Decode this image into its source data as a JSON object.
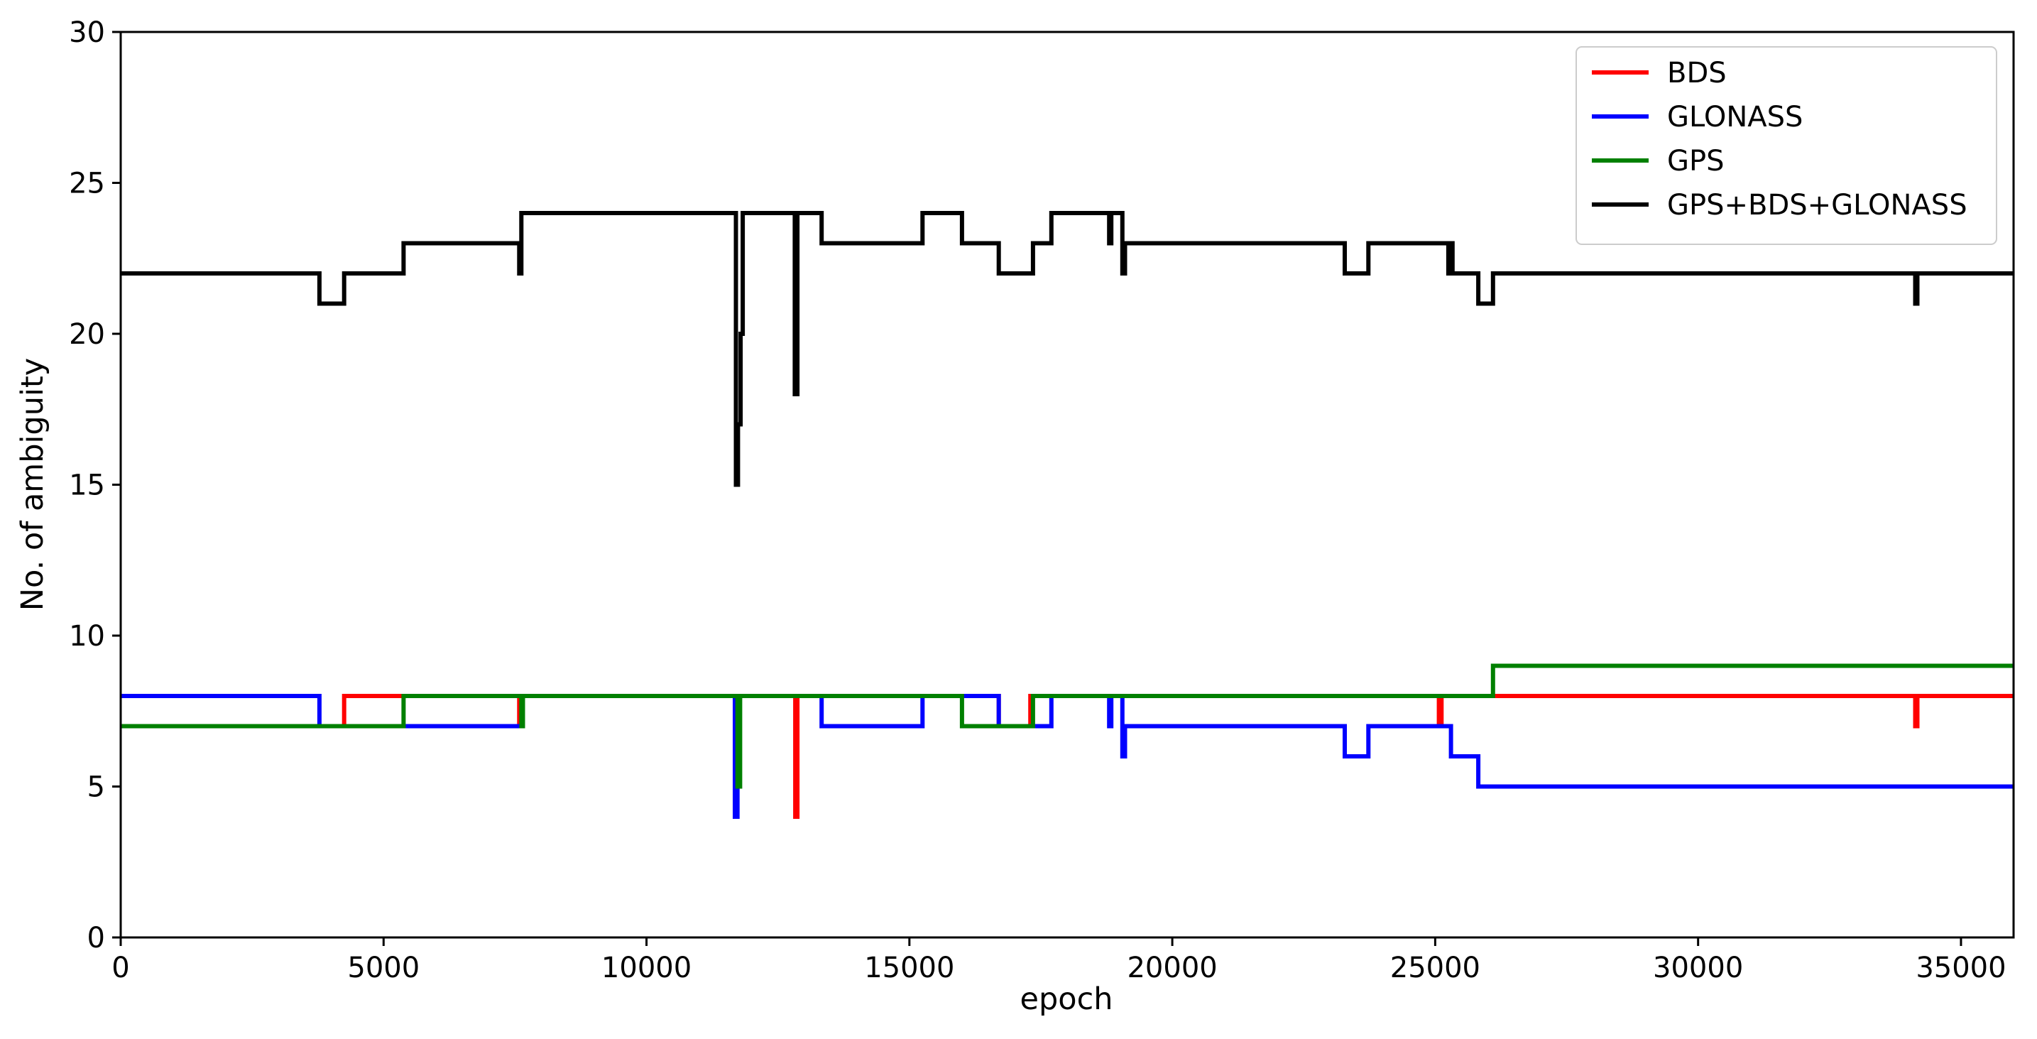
{
  "chart_data": {
    "type": "line",
    "title": "",
    "xlabel": "epoch",
    "ylabel": "No. of ambiguity",
    "xlim": [
      0,
      36000
    ],
    "ylim": [
      0,
      30
    ],
    "xticks": [
      0,
      5000,
      10000,
      15000,
      20000,
      25000,
      30000,
      35000
    ],
    "xtick_labels": [
      "0",
      "5000",
      "10000",
      "15000",
      "20000",
      "25000",
      "30000",
      "35000"
    ],
    "yticks": [
      0,
      5,
      10,
      15,
      20,
      25,
      30
    ],
    "ytick_labels": [
      "0",
      "5",
      "10",
      "15",
      "20",
      "25",
      "30"
    ],
    "grid": false,
    "legend_position": "top-right",
    "step": true,
    "series": [
      {
        "name": "BDS",
        "color": "#ff0000",
        "points": [
          [
            0,
            7
          ],
          [
            4250,
            8
          ],
          [
            7580,
            7
          ],
          [
            7620,
            8
          ],
          [
            11700,
            5
          ],
          [
            11730,
            8
          ],
          [
            12830,
            4
          ],
          [
            12870,
            8
          ],
          [
            16700,
            7
          ],
          [
            17300,
            8
          ],
          [
            25070,
            7
          ],
          [
            25120,
            8
          ],
          [
            34130,
            7
          ],
          [
            34170,
            8
          ],
          [
            36000,
            8
          ]
        ]
      },
      {
        "name": "GLONASS",
        "color": "#0000ff",
        "points": [
          [
            0,
            8
          ],
          [
            3780,
            7
          ],
          [
            7640,
            8
          ],
          [
            11680,
            4
          ],
          [
            11730,
            8
          ],
          [
            13330,
            7
          ],
          [
            15250,
            8
          ],
          [
            16700,
            7
          ],
          [
            17700,
            8
          ],
          [
            18800,
            7
          ],
          [
            18840,
            8
          ],
          [
            19050,
            6
          ],
          [
            19100,
            7
          ],
          [
            23280,
            6
          ],
          [
            23730,
            7
          ],
          [
            25300,
            6
          ],
          [
            25820,
            5
          ],
          [
            36000,
            5
          ]
        ]
      },
      {
        "name": "GPS",
        "color": "#008000",
        "points": [
          [
            0,
            7
          ],
          [
            5380,
            8
          ],
          [
            7620,
            7
          ],
          [
            7650,
            8
          ],
          [
            11730,
            5
          ],
          [
            11780,
            8
          ],
          [
            16000,
            7
          ],
          [
            17350,
            8
          ],
          [
            26100,
            9
          ],
          [
            36000,
            9
          ]
        ]
      },
      {
        "name": "GPS+BDS+GLONASS",
        "color": "#000000",
        "points": [
          [
            0,
            22
          ],
          [
            3780,
            21
          ],
          [
            4250,
            22
          ],
          [
            5380,
            23
          ],
          [
            7580,
            22
          ],
          [
            7620,
            24
          ],
          [
            11700,
            15
          ],
          [
            11740,
            17
          ],
          [
            11790,
            20
          ],
          [
            11830,
            24
          ],
          [
            12820,
            18
          ],
          [
            12870,
            24
          ],
          [
            13330,
            23
          ],
          [
            15250,
            24
          ],
          [
            16000,
            23
          ],
          [
            16700,
            22
          ],
          [
            17350,
            23
          ],
          [
            17700,
            24
          ],
          [
            18800,
            23
          ],
          [
            18840,
            24
          ],
          [
            19050,
            22
          ],
          [
            19100,
            23
          ],
          [
            23280,
            22
          ],
          [
            23730,
            23
          ],
          [
            25250,
            22
          ],
          [
            25290,
            23
          ],
          [
            25330,
            22
          ],
          [
            25820,
            21
          ],
          [
            26100,
            22
          ],
          [
            34130,
            21
          ],
          [
            34170,
            22
          ],
          [
            36000,
            22
          ]
        ]
      }
    ]
  }
}
